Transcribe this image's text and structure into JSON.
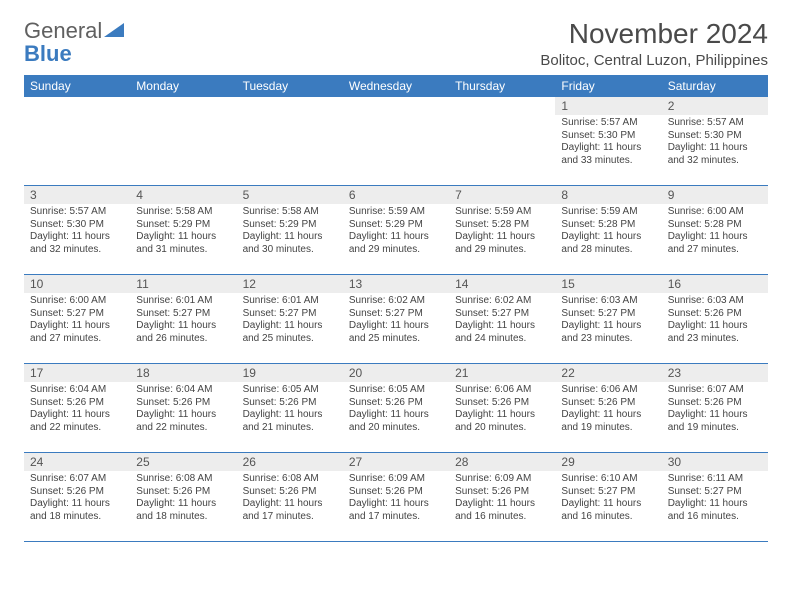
{
  "logo": {
    "word1": "General",
    "word2": "Blue"
  },
  "title": "November 2024",
  "location": "Bolitoc, Central Luzon, Philippines",
  "colors": {
    "header_bg": "#3b7bbf",
    "header_text": "#ffffff",
    "daynum_bg": "#ededed",
    "daynum_text": "#555555",
    "body_text": "#444444",
    "rule": "#3b7bbf",
    "page_bg": "#ffffff"
  },
  "dayNames": [
    "Sunday",
    "Monday",
    "Tuesday",
    "Wednesday",
    "Thursday",
    "Friday",
    "Saturday"
  ],
  "weeks": [
    [
      null,
      null,
      null,
      null,
      null,
      {
        "n": 1,
        "sunrise": "5:57 AM",
        "sunset": "5:30 PM",
        "dlh": 11,
        "dlm": 33
      },
      {
        "n": 2,
        "sunrise": "5:57 AM",
        "sunset": "5:30 PM",
        "dlh": 11,
        "dlm": 32
      }
    ],
    [
      {
        "n": 3,
        "sunrise": "5:57 AM",
        "sunset": "5:30 PM",
        "dlh": 11,
        "dlm": 32
      },
      {
        "n": 4,
        "sunrise": "5:58 AM",
        "sunset": "5:29 PM",
        "dlh": 11,
        "dlm": 31
      },
      {
        "n": 5,
        "sunrise": "5:58 AM",
        "sunset": "5:29 PM",
        "dlh": 11,
        "dlm": 30
      },
      {
        "n": 6,
        "sunrise": "5:59 AM",
        "sunset": "5:29 PM",
        "dlh": 11,
        "dlm": 29
      },
      {
        "n": 7,
        "sunrise": "5:59 AM",
        "sunset": "5:28 PM",
        "dlh": 11,
        "dlm": 29
      },
      {
        "n": 8,
        "sunrise": "5:59 AM",
        "sunset": "5:28 PM",
        "dlh": 11,
        "dlm": 28
      },
      {
        "n": 9,
        "sunrise": "6:00 AM",
        "sunset": "5:28 PM",
        "dlh": 11,
        "dlm": 27
      }
    ],
    [
      {
        "n": 10,
        "sunrise": "6:00 AM",
        "sunset": "5:27 PM",
        "dlh": 11,
        "dlm": 27
      },
      {
        "n": 11,
        "sunrise": "6:01 AM",
        "sunset": "5:27 PM",
        "dlh": 11,
        "dlm": 26
      },
      {
        "n": 12,
        "sunrise": "6:01 AM",
        "sunset": "5:27 PM",
        "dlh": 11,
        "dlm": 25
      },
      {
        "n": 13,
        "sunrise": "6:02 AM",
        "sunset": "5:27 PM",
        "dlh": 11,
        "dlm": 25
      },
      {
        "n": 14,
        "sunrise": "6:02 AM",
        "sunset": "5:27 PM",
        "dlh": 11,
        "dlm": 24
      },
      {
        "n": 15,
        "sunrise": "6:03 AM",
        "sunset": "5:27 PM",
        "dlh": 11,
        "dlm": 23
      },
      {
        "n": 16,
        "sunrise": "6:03 AM",
        "sunset": "5:26 PM",
        "dlh": 11,
        "dlm": 23
      }
    ],
    [
      {
        "n": 17,
        "sunrise": "6:04 AM",
        "sunset": "5:26 PM",
        "dlh": 11,
        "dlm": 22
      },
      {
        "n": 18,
        "sunrise": "6:04 AM",
        "sunset": "5:26 PM",
        "dlh": 11,
        "dlm": 22
      },
      {
        "n": 19,
        "sunrise": "6:05 AM",
        "sunset": "5:26 PM",
        "dlh": 11,
        "dlm": 21
      },
      {
        "n": 20,
        "sunrise": "6:05 AM",
        "sunset": "5:26 PM",
        "dlh": 11,
        "dlm": 20
      },
      {
        "n": 21,
        "sunrise": "6:06 AM",
        "sunset": "5:26 PM",
        "dlh": 11,
        "dlm": 20
      },
      {
        "n": 22,
        "sunrise": "6:06 AM",
        "sunset": "5:26 PM",
        "dlh": 11,
        "dlm": 19
      },
      {
        "n": 23,
        "sunrise": "6:07 AM",
        "sunset": "5:26 PM",
        "dlh": 11,
        "dlm": 19
      }
    ],
    [
      {
        "n": 24,
        "sunrise": "6:07 AM",
        "sunset": "5:26 PM",
        "dlh": 11,
        "dlm": 18
      },
      {
        "n": 25,
        "sunrise": "6:08 AM",
        "sunset": "5:26 PM",
        "dlh": 11,
        "dlm": 18
      },
      {
        "n": 26,
        "sunrise": "6:08 AM",
        "sunset": "5:26 PM",
        "dlh": 11,
        "dlm": 17
      },
      {
        "n": 27,
        "sunrise": "6:09 AM",
        "sunset": "5:26 PM",
        "dlh": 11,
        "dlm": 17
      },
      {
        "n": 28,
        "sunrise": "6:09 AM",
        "sunset": "5:26 PM",
        "dlh": 11,
        "dlm": 16
      },
      {
        "n": 29,
        "sunrise": "6:10 AM",
        "sunset": "5:27 PM",
        "dlh": 11,
        "dlm": 16
      },
      {
        "n": 30,
        "sunrise": "6:11 AM",
        "sunset": "5:27 PM",
        "dlh": 11,
        "dlm": 16
      }
    ]
  ]
}
